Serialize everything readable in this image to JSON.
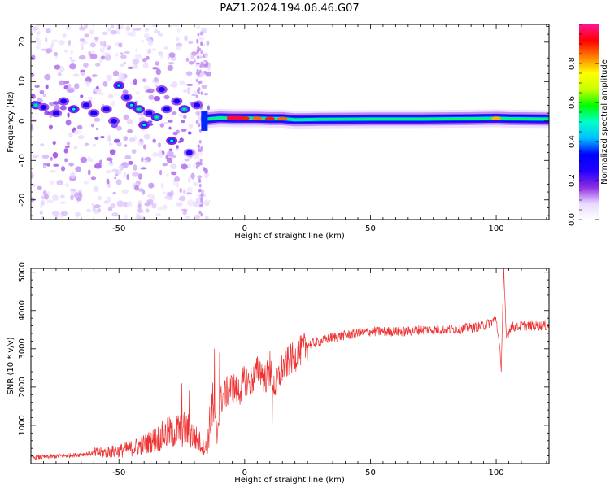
{
  "figure": {
    "title": "PAZ1.2024.194.06.46.G07"
  },
  "chart_data": [
    {
      "type": "heatmap",
      "xlabel": "Height of straight line (km)",
      "ylabel": "Frequency (Hz)",
      "xlim": [
        -85,
        121
      ],
      "ylim": [
        -25,
        24.5
      ],
      "xticks": [
        -50,
        0,
        50,
        100
      ],
      "yticks": [
        -20,
        -10,
        0,
        10,
        20
      ],
      "colorbar": {
        "label": "Normalized spectral amplitude",
        "range": [
          0,
          1
        ],
        "ticks": [
          0.0,
          0.2,
          0.4,
          0.6,
          0.8
        ],
        "colormap": [
          "#ffffff",
          "#e8d8ff",
          "#8a2be2",
          "#2200ff",
          "#0000ff",
          "#00bfff",
          "#00ffcc",
          "#00ff00",
          "#c8ff00",
          "#ffff00",
          "#ff8000",
          "#ff0000",
          "#ff1493"
        ]
      },
      "band": [
        {
          "x": -15,
          "f": 0.5,
          "amp": 0.55
        },
        {
          "x": -10,
          "f": 0.8,
          "amp": 0.75
        },
        {
          "x": -5,
          "f": 0.7,
          "amp": 0.95
        },
        {
          "x": 0,
          "f": 0.7,
          "amp": 0.9
        },
        {
          "x": 5,
          "f": 0.7,
          "amp": 0.85
        },
        {
          "x": 10,
          "f": 0.6,
          "amp": 0.9
        },
        {
          "x": 15,
          "f": 0.6,
          "amp": 0.85
        },
        {
          "x": 20,
          "f": 0.3,
          "amp": 0.6
        },
        {
          "x": 30,
          "f": 0.4,
          "amp": 0.5
        },
        {
          "x": 50,
          "f": 0.5,
          "amp": 0.5
        },
        {
          "x": 70,
          "f": 0.5,
          "amp": 0.55
        },
        {
          "x": 90,
          "f": 0.6,
          "amp": 0.55
        },
        {
          "x": 100,
          "f": 0.7,
          "amp": 0.8
        },
        {
          "x": 105,
          "f": 0.6,
          "amp": 0.6
        },
        {
          "x": 121,
          "f": 0.5,
          "amp": 0.5
        }
      ],
      "scatter_blobs": [
        {
          "x": -83,
          "f": 4,
          "amp": 0.4
        },
        {
          "x": -80,
          "f": 3.5,
          "amp": 0.3
        },
        {
          "x": -75,
          "f": 2,
          "amp": 0.3
        },
        {
          "x": -72,
          "f": 5,
          "amp": 0.3
        },
        {
          "x": -68,
          "f": 3,
          "amp": 0.35
        },
        {
          "x": -63,
          "f": 4,
          "amp": 0.3
        },
        {
          "x": -60,
          "f": 2,
          "amp": 0.3
        },
        {
          "x": -55,
          "f": 3,
          "amp": 0.3
        },
        {
          "x": -52,
          "f": 0,
          "amp": 0.3
        },
        {
          "x": -50,
          "f": 9,
          "amp": 0.35
        },
        {
          "x": -47,
          "f": 6,
          "amp": 0.3
        },
        {
          "x": -45,
          "f": 4,
          "amp": 0.35
        },
        {
          "x": -42,
          "f": 3,
          "amp": 0.4
        },
        {
          "x": -40,
          "f": -1,
          "amp": 0.35
        },
        {
          "x": -38,
          "f": 2,
          "amp": 0.3
        },
        {
          "x": -35,
          "f": 1,
          "amp": 0.4
        },
        {
          "x": -33,
          "f": 8,
          "amp": 0.3
        },
        {
          "x": -31,
          "f": 3,
          "amp": 0.3
        },
        {
          "x": -29,
          "f": -5,
          "amp": 0.35
        },
        {
          "x": -27,
          "f": 5,
          "amp": 0.3
        },
        {
          "x": -24,
          "f": 3,
          "amp": 0.4
        },
        {
          "x": -22,
          "f": -8,
          "amp": 0.25
        },
        {
          "x": -19,
          "f": 4,
          "amp": 0.3
        }
      ]
    },
    {
      "type": "line",
      "xlabel": "Height of straight line (km)",
      "ylabel": "SNR (10 * v/v)",
      "xlim": [
        -85,
        121
      ],
      "ylim": [
        0,
        5100
      ],
      "xticks": [
        -50,
        0,
        50,
        100
      ],
      "yticks": [
        1000,
        2000,
        3000,
        4000,
        5000
      ],
      "color": "#ee3333",
      "x": [
        -85,
        -80,
        -75,
        -70,
        -65,
        -60,
        -55,
        -50,
        -45,
        -40,
        -35,
        -30,
        -25,
        -22,
        -20,
        -17,
        -15,
        -13,
        -11,
        -10,
        -8,
        -5,
        -2,
        0,
        2,
        4,
        6,
        8,
        10,
        12,
        15,
        18,
        20,
        25,
        30,
        35,
        40,
        45,
        50,
        55,
        60,
        65,
        70,
        75,
        80,
        85,
        90,
        95,
        98,
        100,
        101,
        102,
        103,
        104,
        106,
        108,
        110,
        115,
        121
      ],
      "y": [
        150,
        170,
        190,
        210,
        240,
        270,
        300,
        330,
        400,
        500,
        650,
        800,
        900,
        850,
        700,
        500,
        400,
        1500,
        700,
        1600,
        1800,
        2000,
        1900,
        2200,
        2100,
        2300,
        2500,
        2200,
        2400,
        2000,
        2500,
        2700,
        2800,
        3100,
        3200,
        3300,
        3350,
        3400,
        3450,
        3450,
        3450,
        3450,
        3500,
        3500,
        3500,
        3520,
        3550,
        3600,
        3700,
        3800,
        3200,
        2600,
        5000,
        3300,
        3600,
        3550,
        3600,
        3600,
        3600
      ],
      "spikes": [
        {
          "x": -25,
          "y": 2100
        },
        {
          "x": -22,
          "y": 1900
        },
        {
          "x": -12,
          "y": 3000
        },
        {
          "x": -10,
          "y": 2900
        },
        {
          "x": 5,
          "y": 2800
        },
        {
          "x": 10,
          "y": 2950
        },
        {
          "x": 11,
          "y": 1000
        },
        {
          "x": 102,
          "y": 2400
        },
        {
          "x": 103,
          "y": 5100
        }
      ]
    }
  ]
}
